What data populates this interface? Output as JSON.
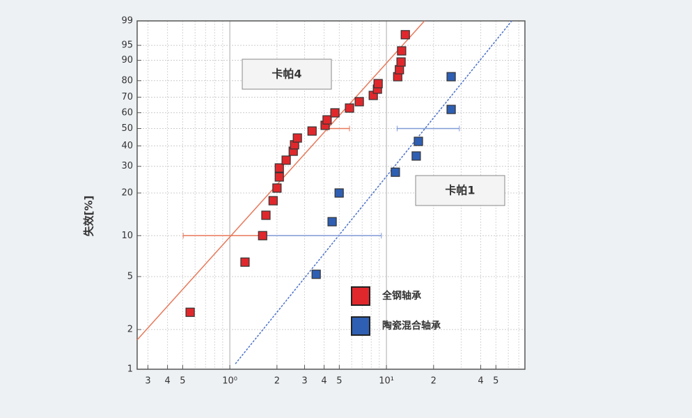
{
  "chart_data": {
    "type": "scatter",
    "y_scale": "weibull",
    "x_scale": "log",
    "grid": true,
    "ylabel": "失效[%]",
    "xlim": [
      0.256,
      76.6
    ],
    "ylim": [
      1,
      99
    ],
    "xticks": [
      {
        "value": 0.3,
        "label": "3"
      },
      {
        "value": 0.4,
        "label": "4"
      },
      {
        "value": 0.5,
        "label": "5"
      },
      {
        "value": 1,
        "label": "10⁰"
      },
      {
        "value": 2,
        "label": "2"
      },
      {
        "value": 3,
        "label": "3"
      },
      {
        "value": 4,
        "label": "4"
      },
      {
        "value": 5,
        "label": "5"
      },
      {
        "value": 10,
        "label": "10¹"
      },
      {
        "value": 20,
        "label": "2"
      },
      {
        "value": 40,
        "label": "4"
      },
      {
        "value": 50,
        "label": "5"
      }
    ],
    "yticks": [
      1,
      2,
      5,
      10,
      20,
      30,
      40,
      50,
      60,
      70,
      80,
      90,
      95,
      99
    ],
    "annotations": [
      "卡帕4",
      "卡帕1"
    ],
    "legend": "lower-right",
    "series": [
      {
        "name": "全钢轴承",
        "color": "#e0282c",
        "x": [
          0.558,
          1.25,
          1.62,
          1.7,
          1.89,
          2.0,
          2.07,
          2.07,
          2.29,
          2.54,
          2.59,
          2.7,
          3.35,
          4.06,
          4.18,
          4.69,
          5.81,
          6.71,
          8.24,
          8.76,
          8.85,
          11.8,
          12.1,
          12.4,
          12.5,
          13.2
        ],
        "values": [
          2.7,
          6.4,
          10,
          14,
          17.7,
          21.6,
          25.6,
          29.3,
          32.8,
          37.2,
          40.6,
          44.4,
          48.5,
          52,
          55.4,
          59.9,
          63,
          67.1,
          71.1,
          75,
          78.3,
          82.2,
          85.8,
          89.3,
          93.4,
          97.3
        ]
      },
      {
        "name": "陶瓷混合轴承",
        "color": "#2f5fb3",
        "x": [
          3.56,
          4.5,
          4.99,
          11.4,
          15.5,
          16.0,
          25.9,
          25.9
        ],
        "values": [
          5.2,
          12.6,
          20,
          27.5,
          34.8,
          42.5,
          62.1,
          82.2
        ]
      }
    ],
    "fit_lines": [
      {
        "color": "#e8785a",
        "x": [
          0.256,
          17.5
        ],
        "values": [
          1.67,
          99
        ]
      },
      {
        "color": "#4a70c8",
        "x": [
          1.085,
          63.1
        ],
        "values": [
          1.1,
          99
        ]
      }
    ],
    "intervals": [
      {
        "color": "#e8785a",
        "y": 10,
        "x": [
          0.504,
          1.67
        ]
      },
      {
        "color": "#7f9ad6",
        "y": 10,
        "x": [
          1.67,
          9.28
        ]
      },
      {
        "color": "#e8785a",
        "y": 50,
        "x": [
          4.19,
          5.81
        ]
      },
      {
        "color": "#7f9ad6",
        "y": 50,
        "x": [
          11.7,
          29.2
        ]
      }
    ]
  }
}
